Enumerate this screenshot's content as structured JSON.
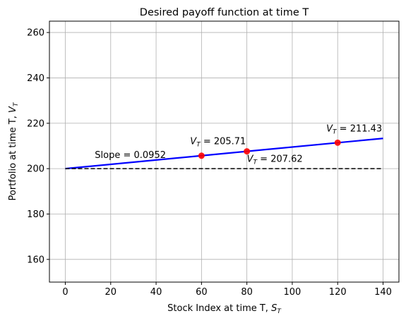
{
  "chart_data": {
    "type": "line",
    "title": "Desired payoff function at time T",
    "xlabel": "Stock Index at time T, ",
    "xlabel_math": "S",
    "xlabel_sub": "T",
    "ylabel": "Portfolio at time T, ",
    "ylabel_math": "V",
    "ylabel_sub": "T",
    "xlim": [
      -7,
      147
    ],
    "ylim": [
      150,
      265
    ],
    "xticks": [
      0,
      20,
      40,
      60,
      80,
      100,
      120,
      140
    ],
    "yticks": [
      160,
      180,
      200,
      220,
      240,
      260
    ],
    "grid": true,
    "series": [
      {
        "kind": "line",
        "color": "#0000ff",
        "x": [
          0,
          140
        ],
        "y": [
          200,
          213.33
        ]
      },
      {
        "kind": "dashed",
        "color": "#000000",
        "x": [
          0,
          140
        ],
        "y": [
          200,
          200
        ]
      },
      {
        "kind": "scatter",
        "color": "#ff0000",
        "x": [
          60,
          80,
          120
        ],
        "y": [
          205.71,
          207.62,
          211.43
        ]
      }
    ],
    "annotations": [
      {
        "math": "V",
        "sub": "T",
        "rest": " = 205.71",
        "x": 55,
        "y": 210.8
      },
      {
        "math": "V",
        "sub": "T",
        "rest": " = 207.62",
        "x": 80,
        "y": 203.0
      },
      {
        "math": "V",
        "sub": "T",
        "rest": " = 211.43",
        "x": 115,
        "y": 216.3
      },
      {
        "text": "Slope = 0.0952",
        "x": 13,
        "y": 204.7
      }
    ]
  }
}
